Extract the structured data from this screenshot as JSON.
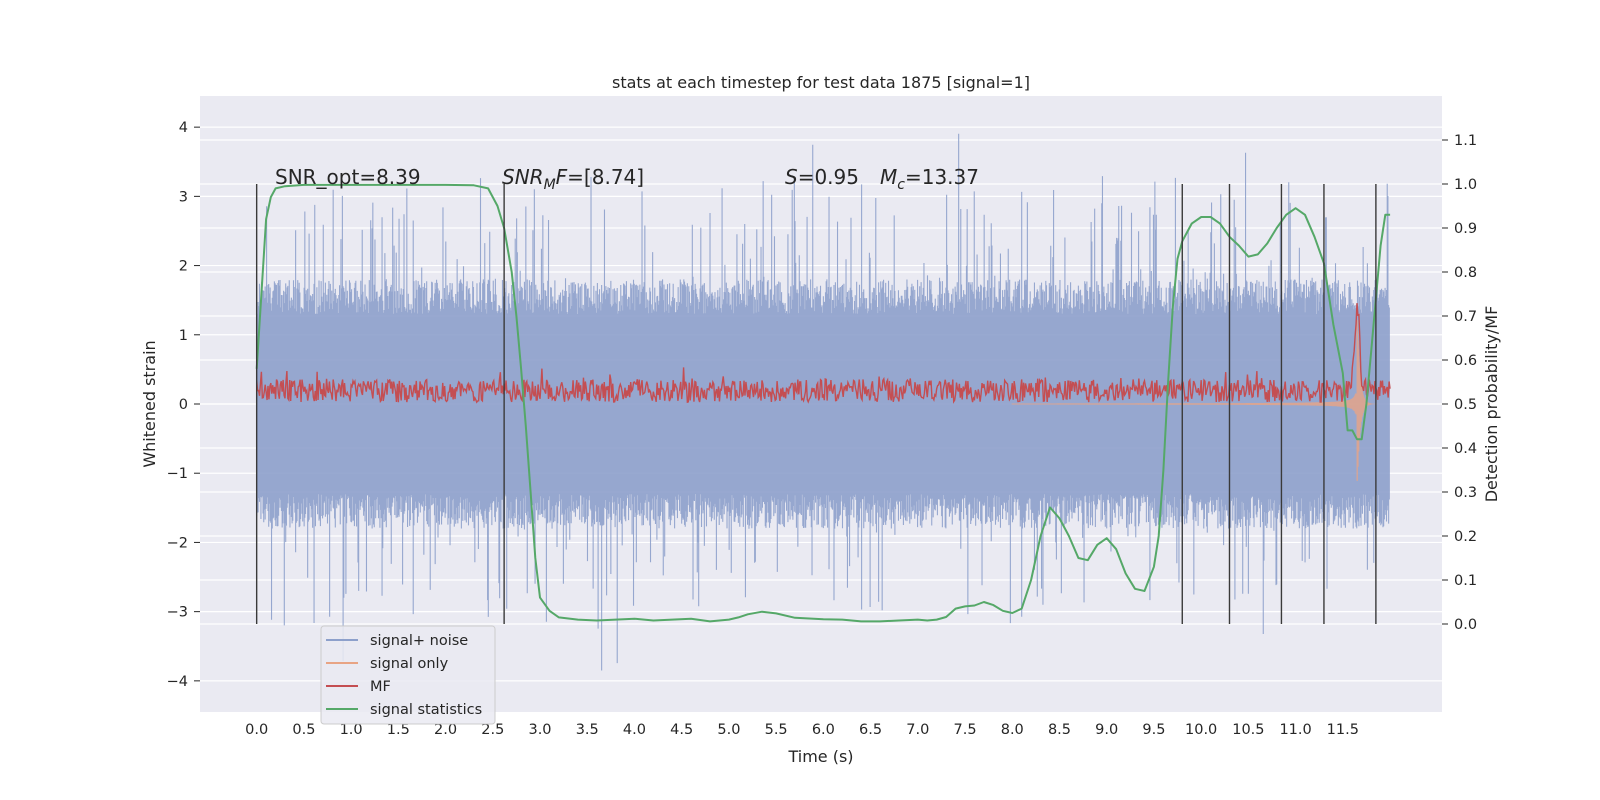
{
  "chart_data": {
    "type": "line",
    "title": "stats at each timestep for test data 1875 [signal=1]",
    "xlabel": "Time (s)",
    "ylabel_left": "Whitened strain",
    "ylabel_right": "Detection probability/MF",
    "xlim": [
      -0.6,
      12.55
    ],
    "ylim_left": [
      -4.45,
      4.45
    ],
    "ylim_right": [
      -0.2,
      1.2
    ],
    "x_ticks": [
      "0.0",
      "0.5",
      "1.0",
      "1.5",
      "2.0",
      "2.5",
      "3.0",
      "3.5",
      "4.0",
      "4.5",
      "5.0",
      "5.5",
      "6.0",
      "6.5",
      "7.0",
      "7.5",
      "8.0",
      "8.5",
      "9.0",
      "9.5",
      "10.0",
      "10.5",
      "11.0",
      "11.5"
    ],
    "y_ticks_left": [
      "−4",
      "−3",
      "−2",
      "−1",
      "0",
      "1",
      "2",
      "3",
      "4"
    ],
    "y_ticks_right": [
      "0.0",
      "0.1",
      "0.2",
      "0.3",
      "0.4",
      "0.5",
      "0.6",
      "0.7",
      "0.8",
      "0.9",
      "1.0",
      "1.1"
    ],
    "grid": true,
    "legend_position": "lower-left",
    "annotations": {
      "snr_opt": "SNR_opt=8.39",
      "snr_mf_base": "SNR",
      "snr_mf_sub": "M",
      "snr_mf_italic": "F",
      "snr_mf_value": "=[8.74]",
      "s_sym": "S",
      "s_value": "=0.95",
      "mc_base": "M",
      "mc_sub": "c",
      "mc_value": "=13.37"
    },
    "series": [
      {
        "name": "signal+ noise",
        "color": "#8da0cb",
        "axis": "left",
        "t_range": [
          0.0,
          12.0
        ],
        "band_left": [
          -1.3,
          1.3
        ],
        "peak_range": [
          -3.8,
          4.1
        ]
      },
      {
        "name": "signal only",
        "color": "#e8a484",
        "axis": "left",
        "t_range": [
          0.0,
          12.0
        ],
        "merger_time": 11.65,
        "amplitude_at_merger": 1.3
      },
      {
        "name": "MF",
        "color": "#c44e52",
        "axis": "right",
        "t_range": [
          0.0,
          12.0
        ],
        "level": 0.53,
        "fluctuation": 0.04,
        "peak": [
          11.65,
          0.73
        ]
      },
      {
        "name": "signal statistics",
        "color": "#55a868",
        "axis": "right",
        "x": [
          0.0,
          0.05,
          0.1,
          0.15,
          0.2,
          0.3,
          0.5,
          1.0,
          1.5,
          2.0,
          2.3,
          2.45,
          2.55,
          2.62,
          2.7,
          2.75,
          2.8,
          2.85,
          2.9,
          2.95,
          3.0,
          3.1,
          3.2,
          3.4,
          3.6,
          3.8,
          4.0,
          4.2,
          4.4,
          4.6,
          4.8,
          5.0,
          5.1,
          5.2,
          5.35,
          5.5,
          5.7,
          6.0,
          6.2,
          6.4,
          6.6,
          6.8,
          7.0,
          7.1,
          7.2,
          7.3,
          7.4,
          7.5,
          7.6,
          7.7,
          7.8,
          7.9,
          8.0,
          8.1,
          8.2,
          8.3,
          8.4,
          8.5,
          8.6,
          8.7,
          8.8,
          8.9,
          9.0,
          9.1,
          9.2,
          9.3,
          9.4,
          9.5,
          9.55,
          9.6,
          9.65,
          9.7,
          9.75,
          9.8,
          9.85,
          9.9,
          10.0,
          10.1,
          10.2,
          10.3,
          10.4,
          10.5,
          10.6,
          10.7,
          10.8,
          10.9,
          11.0,
          11.1,
          11.2,
          11.3,
          11.4,
          11.5,
          11.55,
          11.6,
          11.65,
          11.7,
          11.75,
          11.8,
          11.85,
          11.9,
          11.95,
          12.0
        ],
        "y": [
          0.58,
          0.75,
          0.92,
          0.97,
          0.99,
          0.995,
          0.998,
          0.998,
          0.998,
          0.998,
          0.997,
          0.99,
          0.95,
          0.9,
          0.8,
          0.7,
          0.58,
          0.45,
          0.3,
          0.15,
          0.06,
          0.03,
          0.015,
          0.01,
          0.008,
          0.01,
          0.012,
          0.008,
          0.01,
          0.012,
          0.006,
          0.01,
          0.015,
          0.022,
          0.028,
          0.024,
          0.014,
          0.011,
          0.01,
          0.006,
          0.006,
          0.008,
          0.01,
          0.008,
          0.01,
          0.016,
          0.035,
          0.04,
          0.042,
          0.05,
          0.043,
          0.03,
          0.025,
          0.035,
          0.1,
          0.2,
          0.265,
          0.24,
          0.2,
          0.15,
          0.145,
          0.18,
          0.195,
          0.17,
          0.115,
          0.08,
          0.075,
          0.13,
          0.2,
          0.35,
          0.55,
          0.72,
          0.83,
          0.87,
          0.89,
          0.91,
          0.925,
          0.925,
          0.91,
          0.88,
          0.86,
          0.835,
          0.84,
          0.865,
          0.9,
          0.93,
          0.945,
          0.93,
          0.88,
          0.82,
          0.68,
          0.57,
          0.44,
          0.44,
          0.42,
          0.42,
          0.5,
          0.62,
          0.74,
          0.86,
          0.93,
          0.93
        ]
      }
    ],
    "vertical_markers": [
      0.0,
      2.62,
      9.8,
      10.3,
      10.85,
      11.3,
      11.85
    ]
  },
  "legend": {
    "items": [
      "signal+ noise",
      "signal only",
      "MF",
      "signal statistics"
    ]
  }
}
